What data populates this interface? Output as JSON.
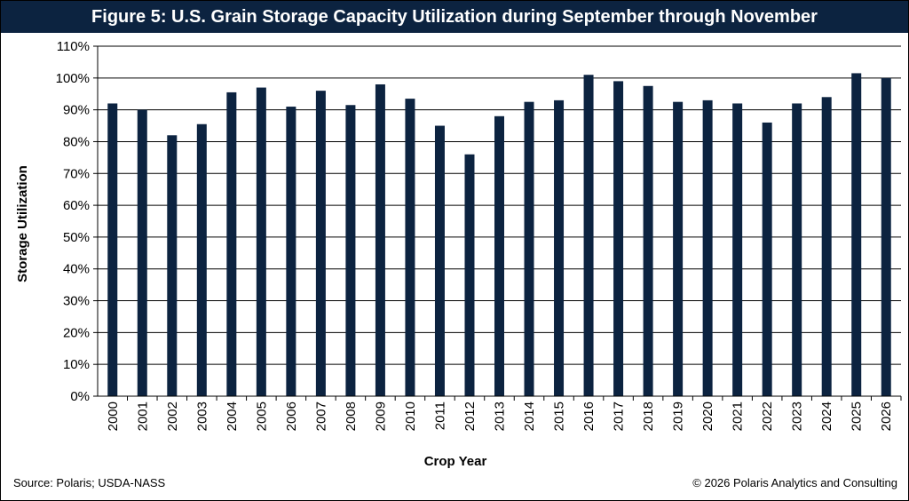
{
  "title": "Figure 5: U.S. Grain Storage Capacity Utilization during September through November",
  "footer": {
    "source": "Source: Polaris; USDA-NASS",
    "copyright": "© 2026 Polaris Analytics and Consulting"
  },
  "colors": {
    "bar": "#0c2340",
    "title_bg": "#0c2340",
    "gridline": "#000000"
  },
  "chart_data": {
    "type": "bar",
    "title": "Figure 5: U.S. Grain Storage Capacity Utilization during September through November",
    "xlabel": "Crop Year",
    "ylabel": "Storage Utilization",
    "ylim": [
      0,
      110
    ],
    "ytick_step": 10,
    "ytick_suffix": "%",
    "grid": true,
    "legend": "none",
    "categories": [
      "2000",
      "2001",
      "2002",
      "2003",
      "2004",
      "2005",
      "2006",
      "2007",
      "2008",
      "2009",
      "2010",
      "2011",
      "2012",
      "2013",
      "2014",
      "2015",
      "2016",
      "2017",
      "2018",
      "2019",
      "2020",
      "2021",
      "2022",
      "2023",
      "2024",
      "2025",
      "2026"
    ],
    "values": [
      92,
      90,
      82,
      85.5,
      95.5,
      97,
      91,
      96,
      91.5,
      98,
      93.5,
      85,
      76,
      88,
      92.5,
      93,
      101,
      99,
      97.5,
      92.5,
      93,
      92,
      86,
      92,
      94,
      101.5,
      100
    ]
  }
}
